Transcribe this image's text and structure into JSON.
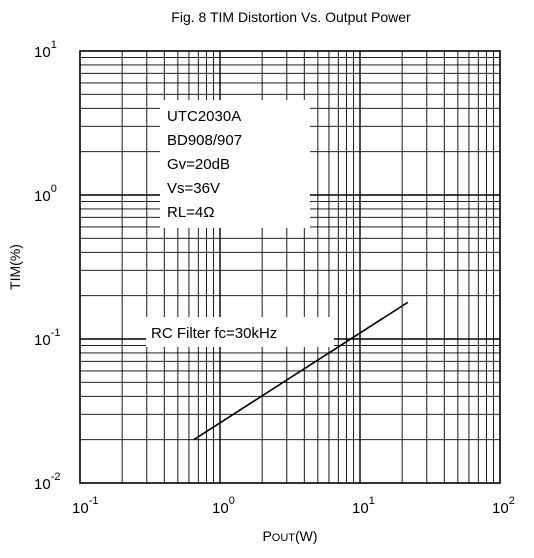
{
  "chart_data": {
    "type": "line",
    "title": "Fig. 8 TIM Distortion Vs. Output Power",
    "xlabel": {
      "main": "P",
      "sub": "OUT",
      "unit": "(W)"
    },
    "ylabel": "TIM(%)",
    "x_scale": "log",
    "y_scale": "log",
    "xlim": [
      0.1,
      100
    ],
    "ylim": [
      0.01,
      10
    ],
    "grid": true,
    "x_ticks": [
      {
        "base": "10",
        "exp": "-1",
        "value": 0.1
      },
      {
        "base": "10",
        "exp": "0",
        "value": 1
      },
      {
        "base": "10",
        "exp": "1",
        "value": 10
      },
      {
        "base": "10",
        "exp": "2",
        "value": 100
      }
    ],
    "y_ticks": [
      {
        "base": "10",
        "exp": "1",
        "value": 10
      },
      {
        "base": "10",
        "exp": "0",
        "value": 1
      },
      {
        "base": "10",
        "exp": "-1",
        "value": 0.1
      },
      {
        "base": "10",
        "exp": "-2",
        "value": 0.01
      }
    ],
    "annotation_box": [
      "UTC2030A",
      "BD908/907",
      "Gv=20dB",
      "Vs=36V",
      "RL=4Ω"
    ],
    "series": [
      {
        "label": "RC Filter fc=30kHz",
        "x": [
          0.65,
          22
        ],
        "y": [
          0.02,
          0.18
        ]
      }
    ]
  }
}
